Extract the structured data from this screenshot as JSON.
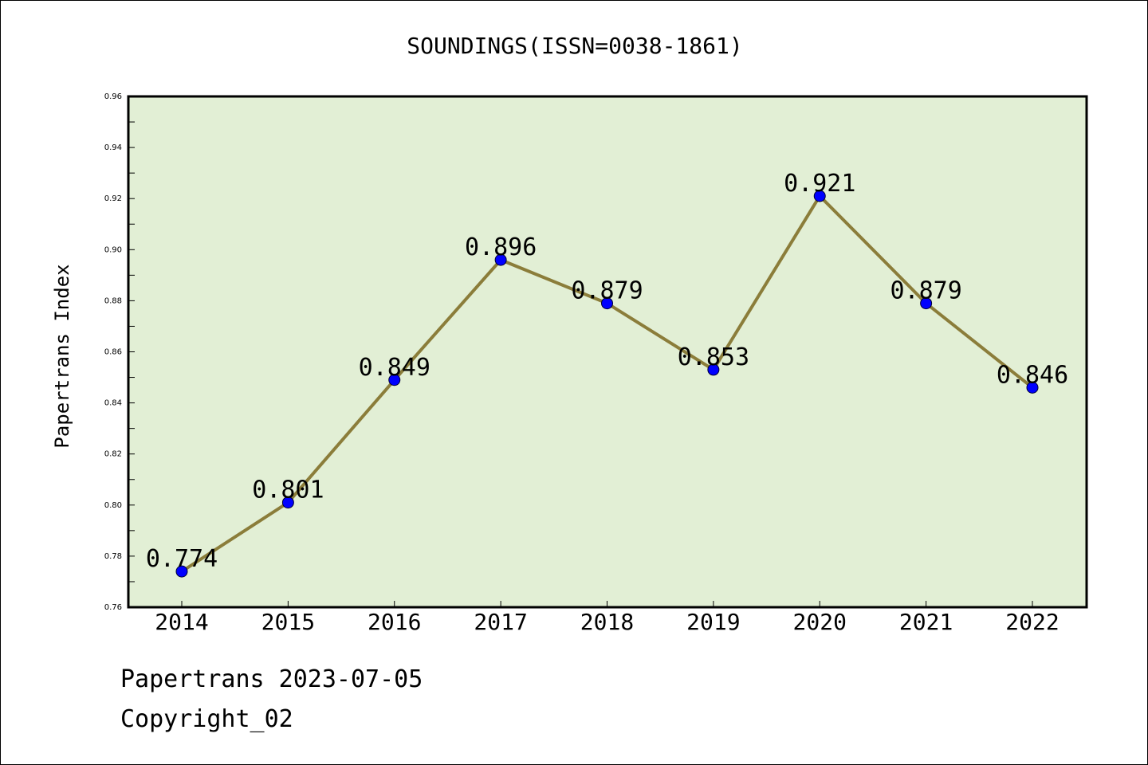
{
  "chart_data": {
    "type": "line",
    "title": "SOUNDINGS(ISSN=0038-1861)",
    "ylabel": "Papertrans Index",
    "xlabel": "",
    "categories": [
      "2014",
      "2015",
      "2016",
      "2017",
      "2018",
      "2019",
      "2020",
      "2021",
      "2022"
    ],
    "series": [
      {
        "values": [
          0.774,
          0.801,
          0.849,
          0.896,
          0.879,
          0.853,
          0.921,
          0.879,
          0.846
        ],
        "data_labels": [
          "0.774",
          "0.801",
          "0.849",
          "0.896",
          "0.879",
          "0.853",
          "0.921",
          "0.879",
          "0.846"
        ],
        "line_color": "#8b7d3a",
        "marker_color": "#0000ff"
      }
    ],
    "ylim": [
      0.76,
      0.96
    ],
    "yticks": [
      0.76,
      0.78,
      0.8,
      0.82,
      0.84,
      0.86,
      0.88,
      0.9,
      0.92,
      0.94,
      0.96
    ],
    "ytick_labels": [
      "0.76",
      "0.78",
      "0.80",
      "0.82",
      "0.84",
      "0.86",
      "0.88",
      "0.90",
      "0.92",
      "0.94",
      "0.96"
    ],
    "grid": false,
    "legend": "none",
    "plot_background": "#e2efd5"
  },
  "footer": {
    "date_line": "Papertrans 2023-07-05",
    "copyright": "Copyright_02"
  }
}
